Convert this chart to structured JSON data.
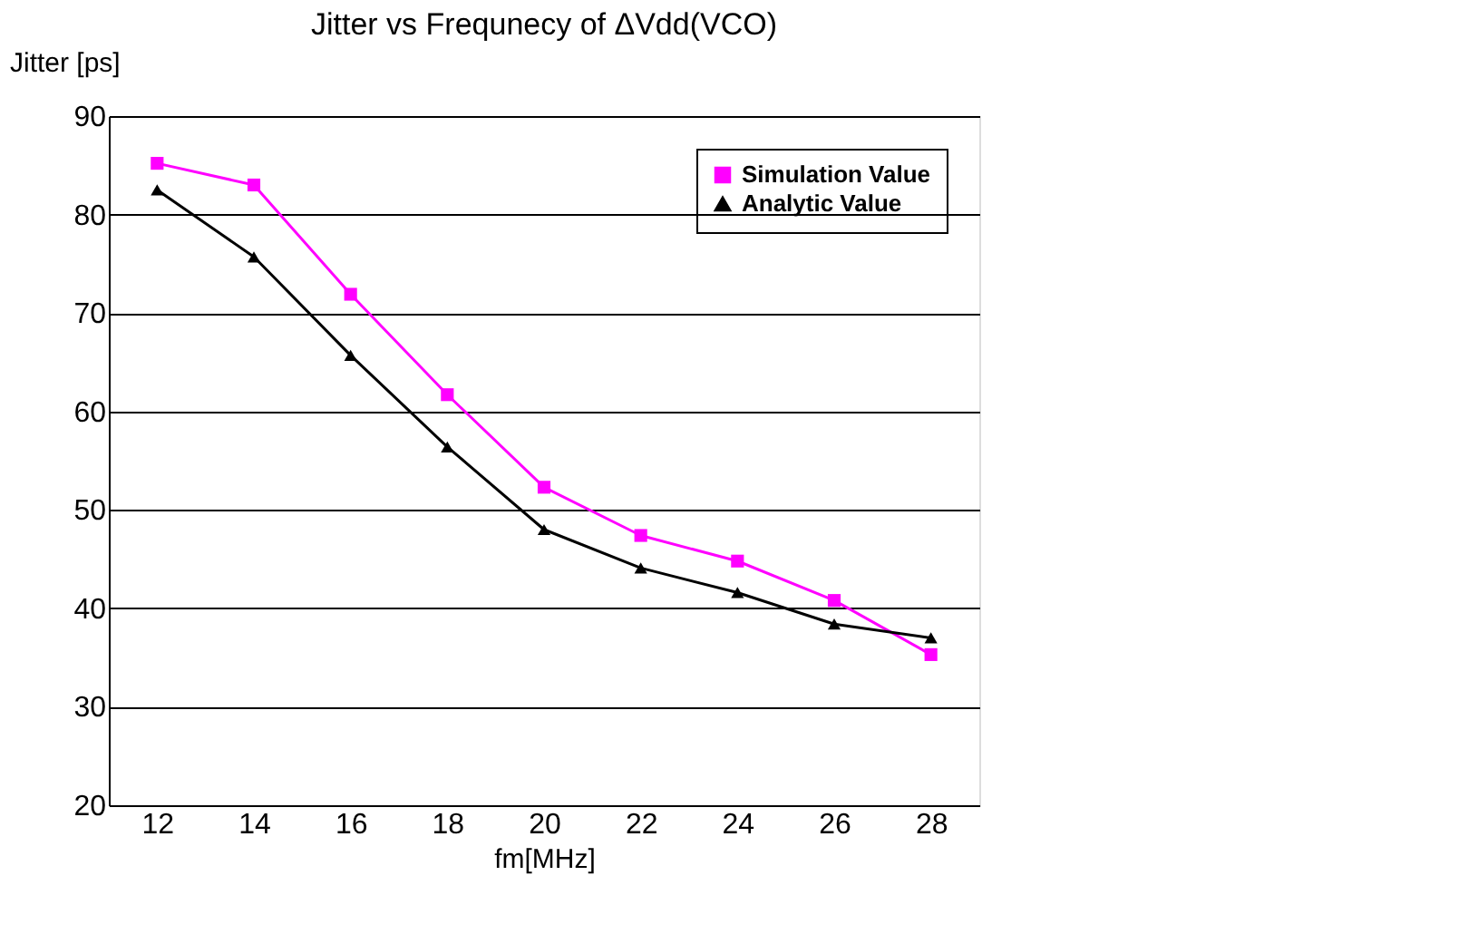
{
  "chart_data": {
    "type": "line",
    "title": "Jitter vs Frequnecy of ΔVdd(VCO)",
    "xlabel": "fm[MHz]",
    "ylabel": "Jitter [ps]",
    "categories": [
      "12",
      "14",
      "16",
      "18",
      "20",
      "22",
      "24",
      "26",
      "28"
    ],
    "series": [
      {
        "name": "Simulation Value",
        "color": "#ff00ff",
        "marker": "square",
        "values": [
          85.2,
          83.0,
          71.9,
          61.7,
          52.3,
          47.4,
          44.8,
          40.8,
          35.3
        ]
      },
      {
        "name": "Analytic Value",
        "color": "#000000",
        "marker": "triangle",
        "values": [
          82.5,
          75.7,
          65.7,
          56.4,
          48.0,
          44.1,
          41.6,
          38.4,
          37.0
        ]
      }
    ],
    "ylim": [
      20,
      90
    ],
    "yticks": [
      20,
      30,
      40,
      50,
      60,
      70,
      80,
      90
    ],
    "grid": "y",
    "legend": "top right",
    "line_style": "solid"
  }
}
